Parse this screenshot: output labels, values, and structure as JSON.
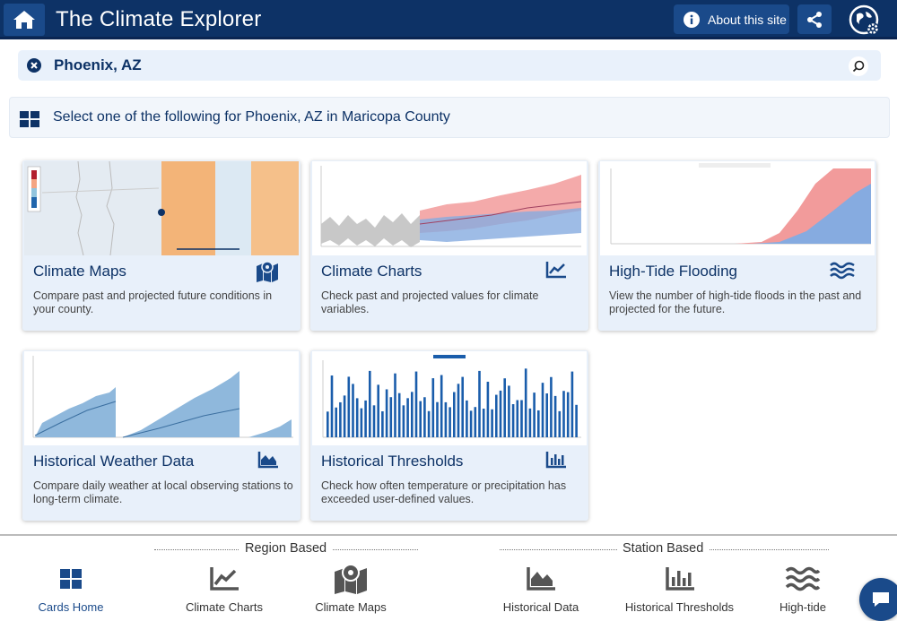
{
  "header": {
    "title": "The Climate Explorer",
    "about_label": "About this site"
  },
  "search": {
    "value": "Phoenix, AZ"
  },
  "banner": {
    "text": "Select one of the following for Phoenix, AZ in Maricopa County"
  },
  "cards": [
    {
      "title": "Climate Maps",
      "desc": "Compare past and projected future conditions in your county.",
      "icon": "map-marker-icon"
    },
    {
      "title": "Climate Charts",
      "desc": "Check past and projected values for climate variables.",
      "icon": "line-chart-icon"
    },
    {
      "title": "High-Tide Flooding",
      "desc": "View the number of high-tide floods in the past and projected for the future.",
      "icon": "waves-icon"
    },
    {
      "title": "Historical Weather Data",
      "desc": "Compare daily weather at local observing stations to long-term climate.",
      "icon": "area-chart-icon"
    },
    {
      "title": "Historical Thresholds",
      "desc": "Check how often temperature or precipitation has exceeded user-defined values.",
      "icon": "bar-chart-icon"
    }
  ],
  "bottom_nav": {
    "region_label": "Region Based",
    "station_label": "Station Based",
    "items": [
      {
        "label": "Cards Home",
        "icon": "grid-icon"
      },
      {
        "label": "Climate Charts",
        "icon": "line-chart-icon"
      },
      {
        "label": "Climate Maps",
        "icon": "map-marker-icon"
      },
      {
        "label": "Historical Data",
        "icon": "area-chart-icon"
      },
      {
        "label": "Historical Thresholds",
        "icon": "bar-chart-icon"
      },
      {
        "label": "High-tide",
        "icon": "waves-icon"
      }
    ]
  },
  "colors": {
    "navy": "#0d3266",
    "accent": "#1a4a8a",
    "card_bg": "#e8f0fa"
  }
}
